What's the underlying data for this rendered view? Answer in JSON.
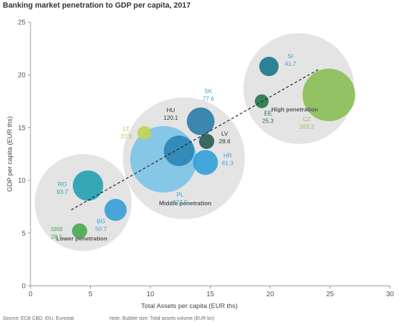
{
  "title": "Banking market penetration to GDP per capita, 2017",
  "source_note": "Source: ECB CBD, EIU, Eurostat",
  "bubble_note": "Note: Bubble size: Total assets volume (EUR bn)",
  "chart_data": {
    "type": "scatter",
    "subtype": "bubble",
    "title": "Banking market penetration to GDP per capita, 2017",
    "xlabel": "Total Assets per capita (EUR ths)",
    "ylabel": "GDP per capita (EUR ths)",
    "xlim": [
      0,
      30
    ],
    "ylim": [
      0,
      25
    ],
    "xticks": [
      0,
      5,
      10,
      15,
      20,
      25,
      30
    ],
    "yticks": [
      0,
      5,
      10,
      15,
      20,
      25
    ],
    "grid": false,
    "points": [
      {
        "code": "PL",
        "x": 11.1,
        "y": 12.0,
        "size": "427.5",
        "color": "#7ec3e6"
      },
      {
        "code": "CZ",
        "x": 24.9,
        "y": 18.1,
        "size": "263.3",
        "color": "#8cbf5a"
      },
      {
        "code": "HU",
        "x": 12.4,
        "y": 12.8,
        "size": "120.1",
        "color": "#2b86b4"
      },
      {
        "code": "RO",
        "x": 4.8,
        "y": 9.5,
        "size": "93.7",
        "color": "#26a3b4"
      },
      {
        "code": "SK",
        "x": 14.2,
        "y": 15.6,
        "size": "77.6",
        "color": "#2c7fa8"
      },
      {
        "code": "HR",
        "x": 14.6,
        "y": 11.7,
        "size": "61.3",
        "color": "#34a2d9"
      },
      {
        "code": "BG",
        "x": 7.1,
        "y": 7.2,
        "size": "50.7",
        "color": "#3b9fd6"
      },
      {
        "code": "SI",
        "x": 19.9,
        "y": 20.8,
        "size": "41.7",
        "color": "#1d7a8c"
      },
      {
        "code": "LV",
        "x": 14.7,
        "y": 13.7,
        "size": "28.6",
        "color": "#2a5e56"
      },
      {
        "code": "SRB",
        "x": 4.1,
        "y": 5.2,
        "size": "28.5",
        "color": "#4aab52"
      },
      {
        "code": "LT",
        "x": 9.5,
        "y": 14.5,
        "size": "27.3",
        "color": "#c2d458"
      },
      {
        "code": "EE",
        "x": 19.3,
        "y": 17.5,
        "size": "25.3",
        "color": "#2a7a4c"
      }
    ],
    "groups": [
      {
        "label": "Lower penetration",
        "cx": 4.4,
        "cy": 7.9
      },
      {
        "label": "Middle penetration",
        "cx": 12.8,
        "cy": 12.1
      },
      {
        "label": "High penetration",
        "cx": 22.4,
        "cy": 18.7
      }
    ],
    "trendline": {
      "from": [
        3.4,
        7.2
      ],
      "to": [
        24.0,
        20.5
      ],
      "style": "dashed"
    }
  }
}
